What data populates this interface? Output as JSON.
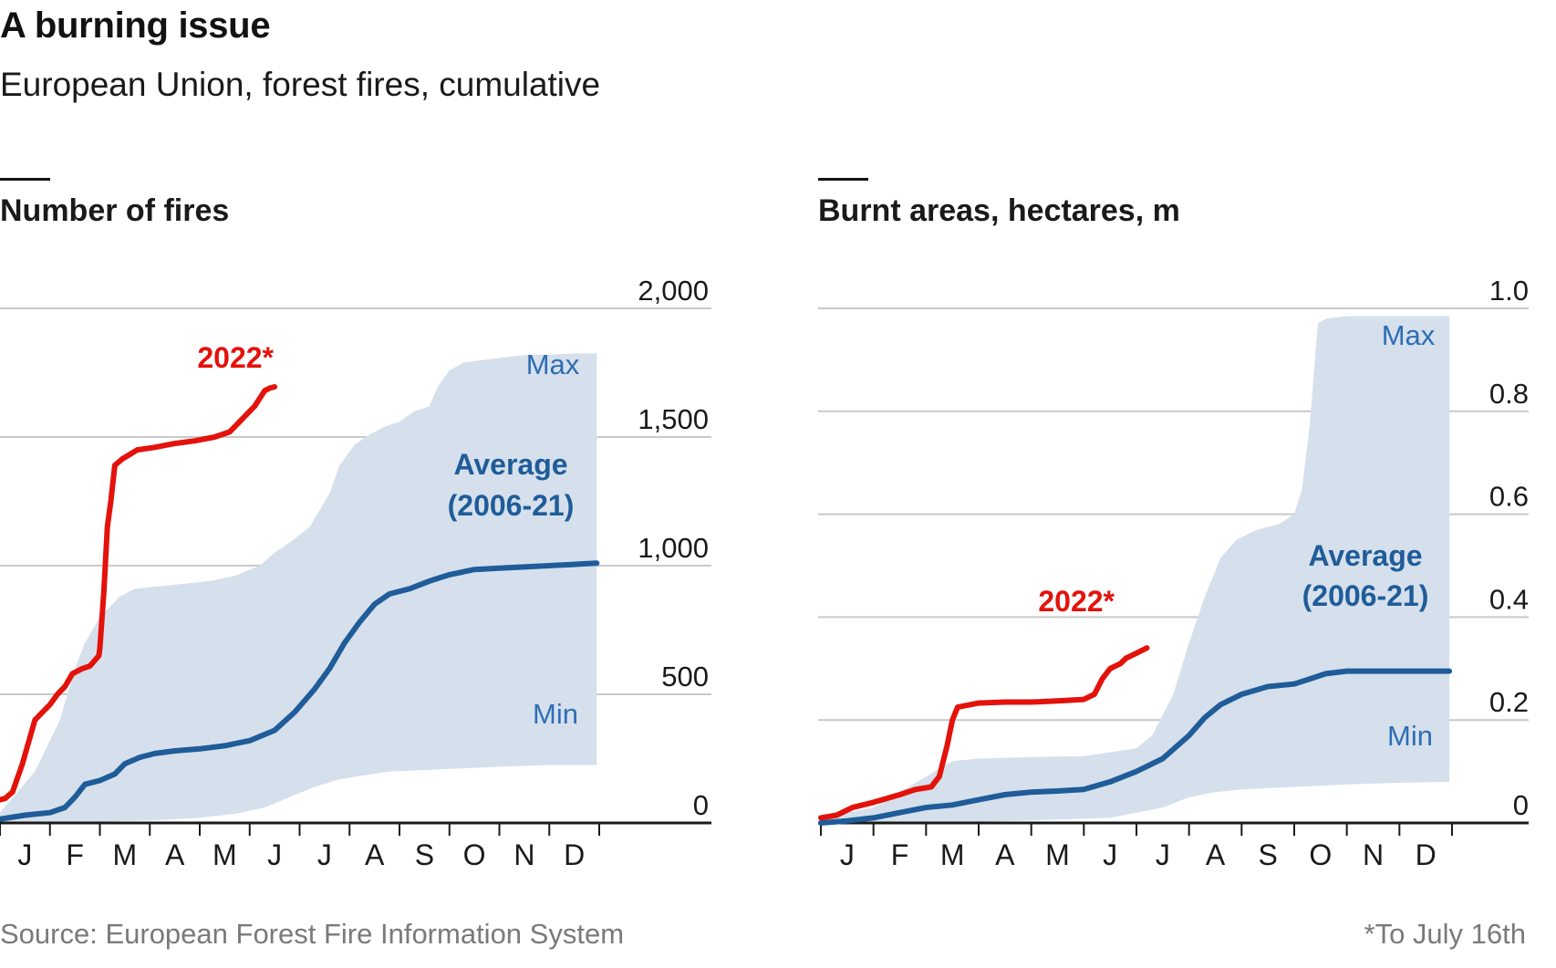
{
  "title": "A burning issue",
  "subtitle": "European Union, forest fires, cumulative",
  "source": "Source: European Forest Fire Information System",
  "footnote": "*To July 16th",
  "colors": {
    "line_2022": "#e3120b",
    "line_average": "#1f5c99",
    "band_fill": "#d5e0ec",
    "band_label": "#2e6db4",
    "gridline": "#c9c9c9",
    "axis": "#1a1a1a"
  },
  "chart_data": [
    {
      "type": "line",
      "title": "Number of fires",
      "categories": [
        "J",
        "F",
        "M",
        "A",
        "M",
        "J",
        "J",
        "A",
        "S",
        "O",
        "N",
        "D"
      ],
      "ylim": [
        0,
        2000
      ],
      "yticks": [
        0,
        500,
        1000,
        1500,
        2000
      ],
      "ytick_labels": [
        "0",
        "500",
        "1,000",
        "1,500",
        "2,000"
      ],
      "grid": true,
      "series": [
        {
          "name": "2022*",
          "color": "#e3120b",
          "points": [
            [
              0,
              90
            ],
            [
              0.1,
              95
            ],
            [
              0.25,
              120
            ],
            [
              0.45,
              230
            ],
            [
              0.7,
              400
            ],
            [
              0.85,
              430
            ],
            [
              1.0,
              460
            ],
            [
              1.15,
              500
            ],
            [
              1.3,
              530
            ],
            [
              1.45,
              580
            ],
            [
              1.55,
              590
            ],
            [
              1.65,
              600
            ],
            [
              1.8,
              610
            ],
            [
              1.98,
              650
            ],
            [
              2.0,
              680
            ],
            [
              2.08,
              900
            ],
            [
              2.15,
              1150
            ],
            [
              2.22,
              1250
            ],
            [
              2.3,
              1390
            ],
            [
              2.45,
              1415
            ],
            [
              2.75,
              1450
            ],
            [
              3.1,
              1460
            ],
            [
              3.5,
              1475
            ],
            [
              3.9,
              1485
            ],
            [
              4.3,
              1500
            ],
            [
              4.6,
              1520
            ],
            [
              4.8,
              1560
            ],
            [
              5.1,
              1620
            ],
            [
              5.3,
              1680
            ],
            [
              5.4,
              1690
            ],
            [
              5.5,
              1695
            ]
          ]
        },
        {
          "name": "Average (2006-21)",
          "color": "#1f5c99",
          "points": [
            [
              0,
              15
            ],
            [
              0.5,
              30
            ],
            [
              1.0,
              40
            ],
            [
              1.3,
              60
            ],
            [
              1.5,
              100
            ],
            [
              1.7,
              150
            ],
            [
              2.0,
              165
            ],
            [
              2.3,
              190
            ],
            [
              2.5,
              230
            ],
            [
              2.8,
              255
            ],
            [
              3.1,
              270
            ],
            [
              3.5,
              280
            ],
            [
              4.0,
              288
            ],
            [
              4.5,
              300
            ],
            [
              5.0,
              320
            ],
            [
              5.5,
              360
            ],
            [
              5.9,
              430
            ],
            [
              6.3,
              520
            ],
            [
              6.6,
              600
            ],
            [
              6.9,
              700
            ],
            [
              7.2,
              780
            ],
            [
              7.5,
              850
            ],
            [
              7.8,
              890
            ],
            [
              8.2,
              910
            ],
            [
              8.6,
              940
            ],
            [
              9.0,
              965
            ],
            [
              9.5,
              985
            ],
            [
              10.0,
              990
            ],
            [
              10.5,
              995
            ],
            [
              11.0,
              1000
            ],
            [
              11.5,
              1005
            ],
            [
              11.95,
              1010
            ]
          ]
        }
      ],
      "band": {
        "name_upper": "Max",
        "name_lower": "Min",
        "upper": [
          [
            0,
            40
          ],
          [
            0.7,
            200
          ],
          [
            1.2,
            400
          ],
          [
            1.5,
            600
          ],
          [
            1.7,
            700
          ],
          [
            2.0,
            800
          ],
          [
            2.4,
            880
          ],
          [
            2.7,
            910
          ],
          [
            3.2,
            920
          ],
          [
            3.7,
            930
          ],
          [
            4.2,
            940
          ],
          [
            4.7,
            960
          ],
          [
            5.2,
            1000
          ],
          [
            5.5,
            1050
          ],
          [
            5.8,
            1090
          ],
          [
            6.2,
            1150
          ],
          [
            6.6,
            1280
          ],
          [
            6.8,
            1390
          ],
          [
            7.1,
            1470
          ],
          [
            7.4,
            1510
          ],
          [
            7.7,
            1540
          ],
          [
            8.0,
            1560
          ],
          [
            8.3,
            1600
          ],
          [
            8.6,
            1620
          ],
          [
            8.75,
            1690
          ],
          [
            9.0,
            1760
          ],
          [
            9.3,
            1790
          ],
          [
            9.7,
            1800
          ],
          [
            10.1,
            1810
          ],
          [
            10.6,
            1820
          ],
          [
            11.0,
            1820
          ],
          [
            11.5,
            1825
          ],
          [
            11.95,
            1825
          ]
        ],
        "lower": [
          [
            0,
            0
          ],
          [
            1.0,
            3
          ],
          [
            2.0,
            5
          ],
          [
            3.0,
            10
          ],
          [
            4.0,
            20
          ],
          [
            4.7,
            35
          ],
          [
            5.3,
            60
          ],
          [
            5.8,
            100
          ],
          [
            6.3,
            140
          ],
          [
            6.8,
            170
          ],
          [
            7.3,
            185
          ],
          [
            7.8,
            200
          ],
          [
            8.4,
            205
          ],
          [
            9.0,
            210
          ],
          [
            9.6,
            215
          ],
          [
            10.2,
            220
          ],
          [
            11.0,
            225
          ],
          [
            11.95,
            225
          ]
        ]
      },
      "labels": {
        "series_2022": "2022*",
        "average_line1": "Average",
        "average_line2": "(2006-21)",
        "max": "Max",
        "min": "Min"
      }
    },
    {
      "type": "line",
      "title": "Burnt areas, hectares, m",
      "categories": [
        "J",
        "F",
        "M",
        "A",
        "M",
        "J",
        "J",
        "A",
        "S",
        "O",
        "N",
        "D"
      ],
      "ylim": [
        0,
        1.0
      ],
      "yticks": [
        0,
        0.2,
        0.4,
        0.6,
        0.8,
        1.0
      ],
      "ytick_labels": [
        "0",
        "0.2",
        "0.4",
        "0.6",
        "0.8",
        "1.0"
      ],
      "grid": true,
      "series": [
        {
          "name": "2022*",
          "color": "#e3120b",
          "points": [
            [
              0,
              0.01
            ],
            [
              0.3,
              0.015
            ],
            [
              0.6,
              0.03
            ],
            [
              1.0,
              0.04
            ],
            [
              1.5,
              0.055
            ],
            [
              1.8,
              0.065
            ],
            [
              2.1,
              0.07
            ],
            [
              2.25,
              0.09
            ],
            [
              2.4,
              0.15
            ],
            [
              2.5,
              0.2
            ],
            [
              2.6,
              0.225
            ],
            [
              3.0,
              0.233
            ],
            [
              3.5,
              0.235
            ],
            [
              4.0,
              0.235
            ],
            [
              4.5,
              0.237
            ],
            [
              5.0,
              0.24
            ],
            [
              5.2,
              0.25
            ],
            [
              5.35,
              0.28
            ],
            [
              5.5,
              0.3
            ],
            [
              5.7,
              0.31
            ],
            [
              5.8,
              0.32
            ],
            [
              6.0,
              0.33
            ],
            [
              6.2,
              0.34
            ]
          ]
        },
        {
          "name": "Average (2006-21)",
          "color": "#1f5c99",
          "points": [
            [
              0,
              0
            ],
            [
              0.5,
              0.004
            ],
            [
              1.0,
              0.01
            ],
            [
              1.5,
              0.02
            ],
            [
              2.0,
              0.03
            ],
            [
              2.5,
              0.035
            ],
            [
              3.0,
              0.045
            ],
            [
              3.5,
              0.055
            ],
            [
              4.0,
              0.06
            ],
            [
              4.5,
              0.062
            ],
            [
              5.0,
              0.065
            ],
            [
              5.5,
              0.08
            ],
            [
              6.0,
              0.1
            ],
            [
              6.5,
              0.125
            ],
            [
              7.0,
              0.17
            ],
            [
              7.3,
              0.205
            ],
            [
              7.6,
              0.23
            ],
            [
              8.0,
              0.25
            ],
            [
              8.5,
              0.265
            ],
            [
              9.0,
              0.27
            ],
            [
              9.3,
              0.28
            ],
            [
              9.6,
              0.29
            ],
            [
              10.0,
              0.295
            ],
            [
              10.5,
              0.295
            ],
            [
              11.0,
              0.295
            ],
            [
              11.5,
              0.295
            ],
            [
              11.95,
              0.295
            ]
          ]
        }
      ],
      "band": {
        "name_upper": "Max",
        "name_lower": "Min",
        "upper": [
          [
            0,
            0.01
          ],
          [
            1.0,
            0.03
          ],
          [
            2.0,
            0.09
          ],
          [
            2.5,
            0.12
          ],
          [
            3.0,
            0.125
          ],
          [
            4.0,
            0.128
          ],
          [
            5.0,
            0.13
          ],
          [
            6.0,
            0.145
          ],
          [
            6.3,
            0.17
          ],
          [
            6.7,
            0.25
          ],
          [
            7.0,
            0.35
          ],
          [
            7.3,
            0.44
          ],
          [
            7.6,
            0.515
          ],
          [
            7.9,
            0.55
          ],
          [
            8.3,
            0.57
          ],
          [
            8.7,
            0.58
          ],
          [
            9.0,
            0.6
          ],
          [
            9.15,
            0.65
          ],
          [
            9.3,
            0.78
          ],
          [
            9.45,
            0.97
          ],
          [
            9.6,
            0.98
          ],
          [
            10.0,
            0.985
          ],
          [
            11.0,
            0.985
          ],
          [
            11.95,
            0.985
          ]
        ],
        "lower": [
          [
            0,
            0
          ],
          [
            2.0,
            0
          ],
          [
            4.0,
            0.005
          ],
          [
            5.5,
            0.01
          ],
          [
            6.0,
            0.02
          ],
          [
            6.5,
            0.03
          ],
          [
            7.0,
            0.05
          ],
          [
            7.5,
            0.06
          ],
          [
            8.0,
            0.065
          ],
          [
            9.0,
            0.07
          ],
          [
            10.0,
            0.075
          ],
          [
            11.0,
            0.078
          ],
          [
            11.95,
            0.08
          ]
        ]
      },
      "labels": {
        "series_2022": "2022*",
        "average_line1": "Average",
        "average_line2": "(2006-21)",
        "max": "Max",
        "min": "Min"
      }
    }
  ]
}
